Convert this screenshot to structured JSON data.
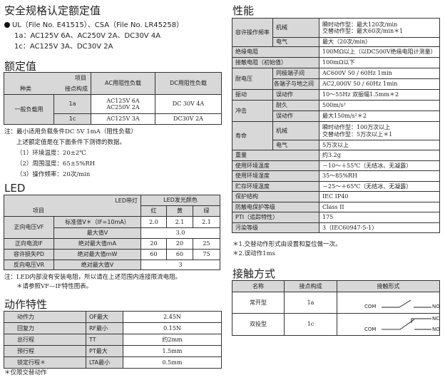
{
  "safety": {
    "title": "安全规格认定额定值",
    "line1": "UL（File No. E41515）、CSA（File No. LR45258）",
    "line2": "1a：AC125V 6A、AC250V 2A、DC30V 4A",
    "line3": "1c：AC125V 3A、DC30V 2A"
  },
  "rated": {
    "title": "额定值",
    "h_item": "项目",
    "h_kind": "种类",
    "h_contact": "接点构成",
    "h_ac": "AC用阻性负载",
    "h_dc": "DC用阻性负载",
    "kind": "一般负载用",
    "rows": [
      {
        "contact": "1a",
        "ac1": "AC125V 6A",
        "ac2": "AC250V 2A",
        "dc": "DC 30V 4A"
      },
      {
        "contact": "1c",
        "ac1": "AC125V 3A",
        "dc": "DC30V 2A"
      }
    ],
    "notes": [
      "注：最小适用负载条件DC 5V 1mA（阻性负载）",
      "上述额定值是在下面条件下测得的数据。",
      "（1）环境温度：20±2℃",
      "（2）周围湿度：65±5%RH",
      "（3）操作频率：20次/min"
    ]
  },
  "led": {
    "title": "LED",
    "h_lamp": "LED带灯",
    "h_color": "LED发光颜色",
    "h_item": "项目",
    "colors": [
      "红",
      "黄",
      "绿"
    ],
    "vf": "正向电压VF",
    "vf_std": "标准值V＊（IF=10mA）",
    "vf_std_vals": [
      "2.0",
      "2.1",
      "2.1"
    ],
    "vf_max": "最大值V",
    "vf_max_val": "3.0",
    "if": "正向电流IF",
    "if_sub": "绝对最大值mA",
    "if_vals": [
      "20",
      "20",
      "25"
    ],
    "pd": "容许损失PD",
    "pd_sub": "绝对最大值mW",
    "pd_vals": [
      "60",
      "60",
      "75"
    ],
    "vr": "反向电压VR",
    "vr_sub": "绝对最大值V",
    "vr_val": "3",
    "notes": [
      "注：LED内部没有安装电阻，所以请在上述范围内连接限流电阻。",
      "＊请参照VF—IF特性图表。"
    ]
  },
  "action": {
    "title": "动作特性",
    "rows": [
      [
        "动作力",
        "OF最大",
        "2.45N"
      ],
      [
        "回复力",
        "RF最小",
        "0.15N"
      ],
      [
        "总行程",
        "TT",
        "约2mm"
      ],
      [
        "预行程",
        "PT最大",
        "1.5mm"
      ],
      [
        "锁定行程＊",
        "LTA最小",
        "0.5mm"
      ]
    ],
    "note": "＊仅限交替动作"
  },
  "perf": {
    "title": "性能",
    "freq": "容许操作频率",
    "mech": "机械",
    "freq_mech1": "瞬时动作型：最大120次/min",
    "freq_mech2": "交替动作型：最大60次/min＊1",
    "elec": "电气",
    "freq_elec": "最大（20次/min）",
    "insul": "绝缘电阻",
    "insul_v": "100MΩ以上（以DC500V绝缘电阻计测量）",
    "contact_r": "接触电阻（初始值）",
    "contact_r_v": "100mΩ以下",
    "withstand": "耐电压",
    "ws1": "同极端子间",
    "ws1_v": "AC600V 50 / 60Hz 1min",
    "ws2": "各端子与地之间",
    "ws2_v": "AC2,000V 50 / 60Hz 1min",
    "vib": "振动",
    "vib_sub": "误动作",
    "vib_v": "10～55Hz 双振幅1.5mm＊2",
    "shock": "冲击",
    "sh1": "耐久",
    "sh1_v": "500m/s²",
    "sh2": "误动作",
    "sh2_v": "最大150m/s²＊2",
    "life": "寿命",
    "life_mech1": "瞬时动作型：100万次以上",
    "life_mech2": "交替动作型：5万次以上＊1",
    "life_elec": "5万次以上",
    "simple": [
      [
        "重量",
        "约3.2g"
      ],
      [
        "使用环境温度",
        "－10～＋55℃（无结冰、无凝露）"
      ],
      [
        "使用环境湿度",
        "35～85%RH"
      ],
      [
        "贮存环境温度",
        "－25～＋65℃（无结冰、无凝露）"
      ],
      [
        "保护结构",
        "IEC IP40"
      ],
      [
        "防触电保护等级",
        "Class II"
      ],
      [
        "PTI（追踪特性）",
        "175"
      ],
      [
        "污染等级",
        "3（IEC60947-5-1）"
      ]
    ],
    "notes": [
      "＊1.交替动作形式由设置和复位做一次。",
      "＊2.误动作1ms"
    ]
  },
  "contact": {
    "title": "接触方式",
    "h_name": "名称",
    "h_config": "接点构成",
    "h_form": "接触形式",
    "rows": [
      {
        "name": "常开型",
        "config": "1a"
      },
      {
        "name": "双投型",
        "config": "1c"
      }
    ],
    "com": "COM",
    "no": "NO",
    "nc": "NC"
  }
}
